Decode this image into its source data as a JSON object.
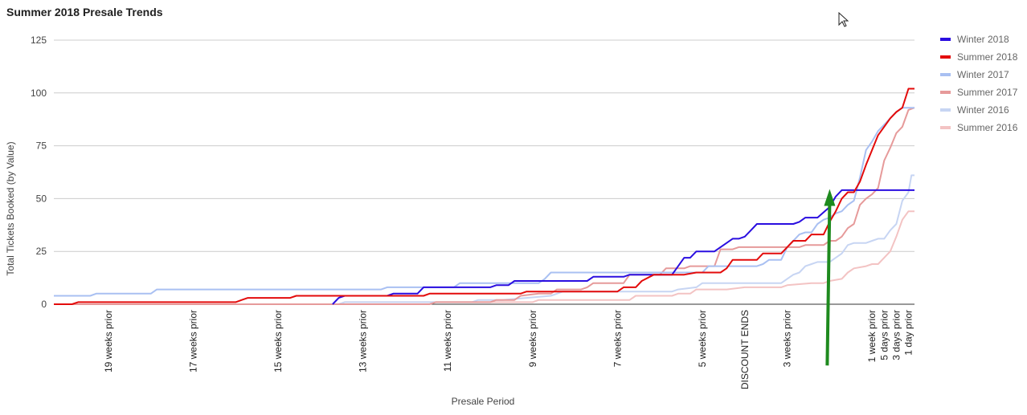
{
  "chart_data": {
    "type": "line",
    "title": "Summer 2018 Presale Trends",
    "xlabel": "Presale Period",
    "ylabel": "Total Tickets Booked (by Value)",
    "ylim": [
      0,
      125
    ],
    "yticks": [
      0,
      25,
      50,
      75,
      100,
      125
    ],
    "xlim": [
      -142,
      0
    ],
    "x_unit": "days relative to show",
    "grid": true,
    "legend_position": "right",
    "x_tick_labels": [
      {
        "x": -133,
        "label": "19 weeks prior"
      },
      {
        "x": -119,
        "label": "17 weeks prior"
      },
      {
        "x": -105,
        "label": "15 weeks prior"
      },
      {
        "x": -91,
        "label": "13 weeks prior"
      },
      {
        "x": -77,
        "label": "11 weeks prior"
      },
      {
        "x": -63,
        "label": "9 weeks prior"
      },
      {
        "x": -49,
        "label": "7 weeks prior"
      },
      {
        "x": -35,
        "label": "5 weeks prior"
      },
      {
        "x": -28,
        "label": "DISCOUNT ENDS"
      },
      {
        "x": -21,
        "label": "3 weeks prior"
      },
      {
        "x": -7,
        "label": "1 week prior"
      },
      {
        "x": -5,
        "label": "5 days prior"
      },
      {
        "x": -3,
        "label": "3 days prior"
      },
      {
        "x": -1,
        "label": "1 day prior"
      }
    ],
    "series": [
      {
        "name": "Winter 2018",
        "color": "#2a0ee0",
        "points": [
          [
            -96,
            0
          ],
          [
            -95,
            3
          ],
          [
            -94,
            4
          ],
          [
            -90,
            4
          ],
          [
            -87,
            4
          ],
          [
            -86,
            5
          ],
          [
            -82,
            5
          ],
          [
            -81,
            8
          ],
          [
            -78,
            8
          ],
          [
            -70,
            8
          ],
          [
            -69,
            9
          ],
          [
            -67,
            9
          ],
          [
            -66,
            11
          ],
          [
            -54,
            11
          ],
          [
            -53,
            13
          ],
          [
            -48,
            13
          ],
          [
            -47,
            14
          ],
          [
            -43,
            14
          ],
          [
            -40,
            14
          ],
          [
            -39,
            18
          ],
          [
            -38,
            22
          ],
          [
            -37,
            22
          ],
          [
            -36,
            25
          ],
          [
            -33,
            25
          ],
          [
            -32,
            27
          ],
          [
            -31,
            29
          ],
          [
            -30,
            31
          ],
          [
            -29,
            31
          ],
          [
            -28,
            32
          ],
          [
            -27,
            35
          ],
          [
            -26,
            38
          ],
          [
            -22,
            38
          ],
          [
            -20,
            38
          ],
          [
            -19,
            39
          ],
          [
            -18,
            41
          ],
          [
            -16,
            41
          ],
          [
            -14,
            46
          ],
          [
            -13,
            51
          ],
          [
            -12,
            54
          ],
          [
            -10,
            54
          ],
          [
            -8,
            54
          ],
          [
            0,
            54
          ]
        ]
      },
      {
        "name": "Summer 2018",
        "color": "#e30b0b",
        "points": [
          [
            -142,
            0
          ],
          [
            -139,
            0
          ],
          [
            -138,
            1
          ],
          [
            -112,
            1
          ],
          [
            -111,
            2
          ],
          [
            -110,
            3
          ],
          [
            -106,
            3
          ],
          [
            -103,
            3
          ],
          [
            -102,
            4
          ],
          [
            -88,
            4
          ],
          [
            -81,
            4
          ],
          [
            -80,
            5
          ],
          [
            -73,
            5
          ],
          [
            -71,
            5
          ],
          [
            -70,
            5
          ],
          [
            -65,
            5
          ],
          [
            -64,
            6
          ],
          [
            -58,
            6
          ],
          [
            -57,
            6
          ],
          [
            -53,
            6
          ],
          [
            -52,
            6
          ],
          [
            -49,
            6
          ],
          [
            -48,
            8
          ],
          [
            -46,
            8
          ],
          [
            -45,
            11
          ],
          [
            -43,
            14
          ],
          [
            -38,
            14
          ],
          [
            -36,
            15
          ],
          [
            -32,
            15
          ],
          [
            -31,
            17
          ],
          [
            -30,
            21
          ],
          [
            -26,
            21
          ],
          [
            -25,
            24
          ],
          [
            -22,
            24
          ],
          [
            -21,
            27
          ],
          [
            -20,
            30
          ],
          [
            -18,
            30
          ],
          [
            -17,
            33
          ],
          [
            -15,
            33
          ],
          [
            -14,
            39
          ],
          [
            -13,
            44
          ],
          [
            -12,
            50
          ],
          [
            -11,
            53
          ],
          [
            -10,
            53
          ],
          [
            -9,
            58
          ],
          [
            -8,
            66
          ],
          [
            -7,
            73
          ],
          [
            -6,
            80
          ],
          [
            -5,
            84
          ],
          [
            -4,
            88
          ],
          [
            -3,
            91
          ],
          [
            -2,
            93
          ],
          [
            -1,
            102
          ],
          [
            0,
            102
          ]
        ]
      },
      {
        "name": "Winter 2017",
        "color": "#a9c0f2",
        "points": [
          [
            -142,
            4
          ],
          [
            -136,
            4
          ],
          [
            -135,
            5
          ],
          [
            -126,
            5
          ],
          [
            -125,
            7
          ],
          [
            -99,
            7
          ],
          [
            -88,
            7
          ],
          [
            -87,
            8
          ],
          [
            -76,
            8
          ],
          [
            -75,
            10
          ],
          [
            -70,
            10
          ],
          [
            -62,
            10
          ],
          [
            -61,
            12
          ],
          [
            -60,
            15
          ],
          [
            -49,
            15
          ],
          [
            -40,
            15
          ],
          [
            -35,
            15
          ],
          [
            -34,
            18
          ],
          [
            -30,
            18
          ],
          [
            -28,
            18
          ],
          [
            -26,
            18
          ],
          [
            -25,
            19
          ],
          [
            -24,
            21
          ],
          [
            -22,
            21
          ],
          [
            -21,
            27
          ],
          [
            -20,
            30
          ],
          [
            -19,
            33
          ],
          [
            -18,
            34
          ],
          [
            -17,
            34
          ],
          [
            -16,
            38
          ],
          [
            -15,
            40
          ],
          [
            -14,
            41
          ],
          [
            -13,
            43
          ],
          [
            -12,
            44
          ],
          [
            -11,
            47
          ],
          [
            -10,
            49
          ],
          [
            -9,
            60
          ],
          [
            -8,
            73
          ],
          [
            -7,
            77
          ],
          [
            -6,
            82
          ],
          [
            -5,
            85
          ],
          [
            -4,
            88
          ],
          [
            -3,
            91
          ],
          [
            -2,
            93
          ],
          [
            0,
            93
          ]
        ]
      },
      {
        "name": "Summer 2017",
        "color": "#e69a9a",
        "points": [
          [
            -142,
            0
          ],
          [
            -130,
            0
          ],
          [
            -120,
            0
          ],
          [
            -108,
            0
          ],
          [
            -100,
            0
          ],
          [
            -90,
            0
          ],
          [
            -80,
            0
          ],
          [
            -79,
            1
          ],
          [
            -74,
            1
          ],
          [
            -70,
            1
          ],
          [
            -69,
            2
          ],
          [
            -66,
            2
          ],
          [
            -65,
            4
          ],
          [
            -62,
            5
          ],
          [
            -60,
            5
          ],
          [
            -59,
            7
          ],
          [
            -55,
            7
          ],
          [
            -54,
            8
          ],
          [
            -53,
            10
          ],
          [
            -48,
            10
          ],
          [
            -47,
            14
          ],
          [
            -42,
            14
          ],
          [
            -41,
            17
          ],
          [
            -38,
            17
          ],
          [
            -37,
            18
          ],
          [
            -33,
            18
          ],
          [
            -32,
            26
          ],
          [
            -30,
            26
          ],
          [
            -29,
            27
          ],
          [
            -22,
            27
          ],
          [
            -21,
            27
          ],
          [
            -19,
            27
          ],
          [
            -18,
            28
          ],
          [
            -15,
            28
          ],
          [
            -14,
            30
          ],
          [
            -13,
            30
          ],
          [
            -12,
            32
          ],
          [
            -11,
            36
          ],
          [
            -10,
            38
          ],
          [
            -9,
            47
          ],
          [
            -8,
            50
          ],
          [
            -7,
            52
          ],
          [
            -6,
            55
          ],
          [
            -5,
            68
          ],
          [
            -4,
            74
          ],
          [
            -3,
            81
          ],
          [
            -2,
            84
          ],
          [
            -1,
            92
          ],
          [
            0,
            93
          ]
        ]
      },
      {
        "name": "Winter 2016",
        "color": "#c7d5f3",
        "points": [
          [
            -142,
            0
          ],
          [
            -100,
            0
          ],
          [
            -95,
            0
          ],
          [
            -94,
            1
          ],
          [
            -73,
            1
          ],
          [
            -72,
            2
          ],
          [
            -68,
            2
          ],
          [
            -60,
            4
          ],
          [
            -58,
            6
          ],
          [
            -45,
            6
          ],
          [
            -44,
            6
          ],
          [
            -43,
            6
          ],
          [
            -42,
            6
          ],
          [
            -41,
            6
          ],
          [
            -40,
            6
          ],
          [
            -39,
            7
          ],
          [
            -36,
            8
          ],
          [
            -35,
            10
          ],
          [
            -34,
            10
          ],
          [
            -22,
            10
          ],
          [
            -21,
            12
          ],
          [
            -20,
            14
          ],
          [
            -19,
            15
          ],
          [
            -18,
            18
          ],
          [
            -17,
            19
          ],
          [
            -16,
            20
          ],
          [
            -14,
            20
          ],
          [
            -13,
            22
          ],
          [
            -12,
            24
          ],
          [
            -11,
            28
          ],
          [
            -10,
            29
          ],
          [
            -8,
            29
          ],
          [
            -7,
            30
          ],
          [
            -6,
            31
          ],
          [
            -5,
            31
          ],
          [
            -4,
            35
          ],
          [
            -3,
            38
          ],
          [
            -2,
            49
          ],
          [
            -1,
            53
          ],
          [
            -0.5,
            61
          ],
          [
            0,
            61
          ]
        ]
      },
      {
        "name": "Summer 2016",
        "color": "#f3c3c3",
        "points": [
          [
            -142,
            0
          ],
          [
            -96,
            0
          ],
          [
            -95,
            0
          ],
          [
            -94,
            1
          ],
          [
            -80,
            1
          ],
          [
            -79,
            1
          ],
          [
            -70,
            1
          ],
          [
            -64,
            1
          ],
          [
            -63,
            1
          ],
          [
            -62,
            2
          ],
          [
            -58,
            2
          ],
          [
            -50,
            2
          ],
          [
            -47,
            2
          ],
          [
            -46,
            4
          ],
          [
            -42,
            4
          ],
          [
            -40,
            4
          ],
          [
            -39,
            5
          ],
          [
            -37,
            5
          ],
          [
            -36,
            7
          ],
          [
            -32,
            7
          ],
          [
            -31,
            7
          ],
          [
            -28,
            8
          ],
          [
            -22,
            8
          ],
          [
            -21,
            9
          ],
          [
            -17,
            10
          ],
          [
            -15,
            10
          ],
          [
            -14,
            11
          ],
          [
            -12,
            12
          ],
          [
            -11,
            15
          ],
          [
            -10,
            17
          ],
          [
            -8,
            18
          ],
          [
            -7,
            19
          ],
          [
            -6,
            19
          ],
          [
            -5,
            22
          ],
          [
            -4,
            25
          ],
          [
            -3,
            32
          ],
          [
            -2,
            40
          ],
          [
            -1,
            44
          ],
          [
            0,
            44
          ]
        ]
      }
    ],
    "annotation": {
      "type": "arrow",
      "color": "#1e8a1e",
      "from": [
        -14.4,
        -29
      ],
      "to": [
        -14.0,
        53
      ]
    }
  }
}
